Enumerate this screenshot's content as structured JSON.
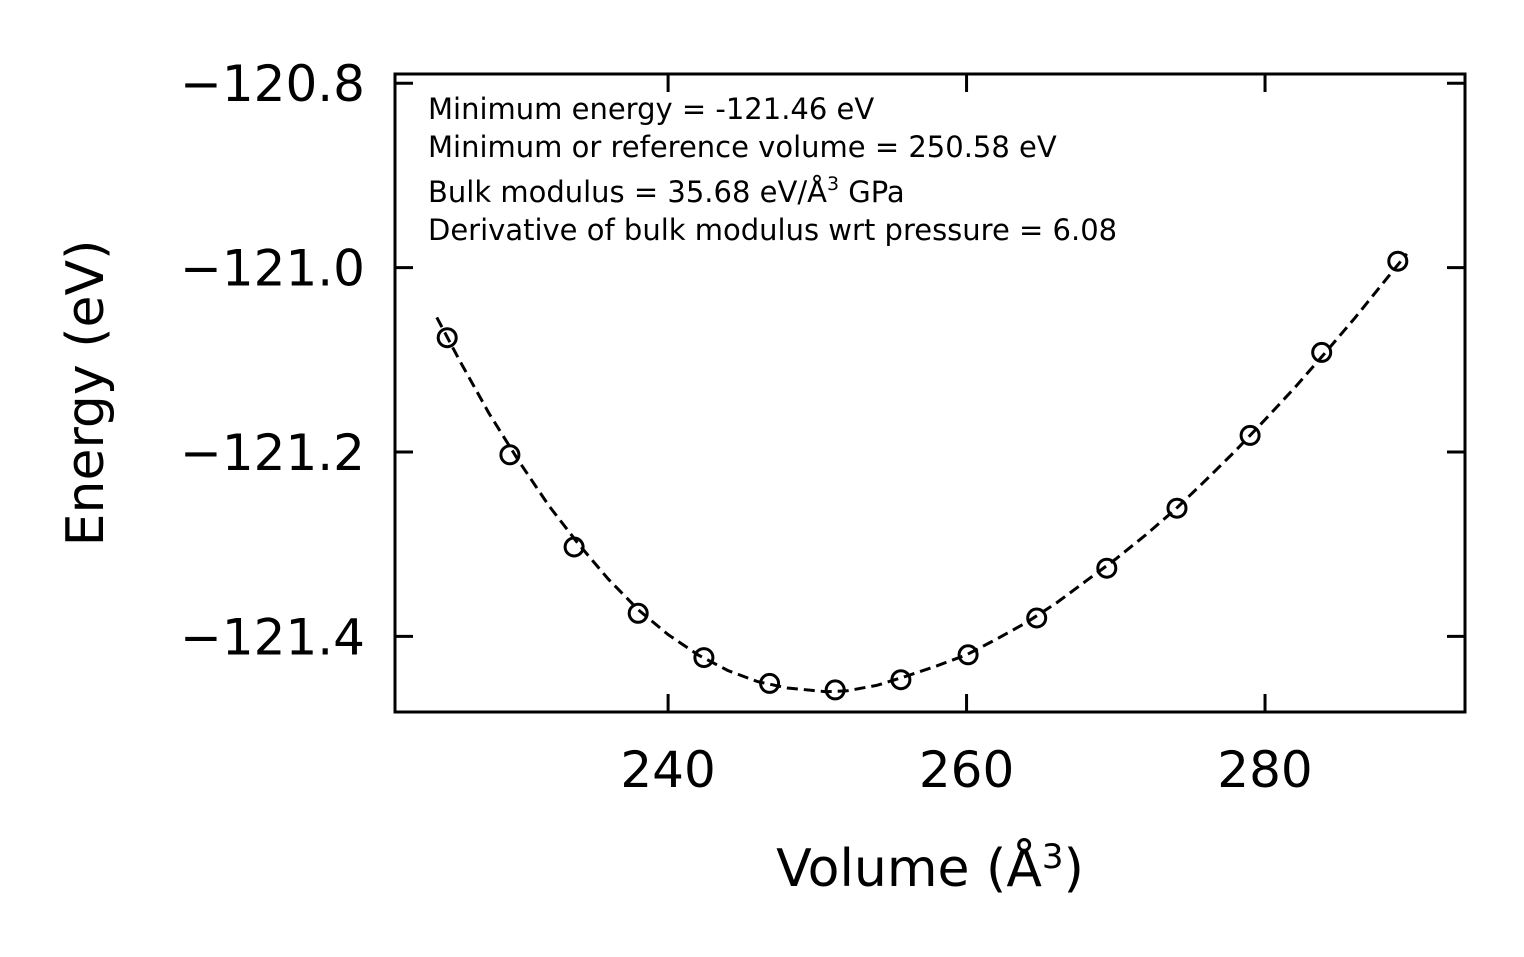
{
  "chart_data": {
    "type": "scatter",
    "title": "",
    "xlabel": "Volume (Å",
    "xlabel_sup": "3",
    "xlabel_end": ")",
    "ylabel": "Energy (eV)",
    "xlim": [
      221.7,
      293.4
    ],
    "ylim": [
      -121.482,
      -120.79
    ],
    "xticks": [
      240,
      260,
      280
    ],
    "xtick_labels": [
      "240",
      "260",
      "280"
    ],
    "yticks": [
      -120.8,
      -121.0,
      -121.2,
      -121.4
    ],
    "ytick_labels": [
      "−120.8",
      "−121.0",
      "−121.2",
      "−121.4"
    ],
    "series": [
      {
        "name": "data points",
        "marker": "open-circle",
        "x": [
          225.2,
          229.4,
          233.7,
          238.0,
          242.4,
          246.8,
          251.2,
          255.6,
          260.1,
          264.7,
          269.4,
          274.1,
          279.0,
          283.8,
          288.9
        ],
        "y": [
          -121.076,
          -121.203,
          -121.303,
          -121.375,
          -121.423,
          -121.451,
          -121.458,
          -121.447,
          -121.42,
          -121.38,
          -121.326,
          -121.261,
          -121.182,
          -121.092,
          -120.993
        ]
      },
      {
        "name": "fit",
        "style": "dashed",
        "x": [
          224.5,
          226.0,
          228.0,
          230.0,
          232.0,
          234.0,
          236.0,
          238.0,
          240.0,
          242.0,
          244.0,
          246.0,
          248.0,
          250.58,
          252.0,
          254.0,
          256.0,
          258.0,
          260.0,
          262.0,
          264.0,
          266.0,
          268.0,
          270.0,
          272.0,
          274.0,
          276.0,
          278.0,
          280.0,
          282.0,
          284.0,
          286.0,
          288.0,
          289.5
        ],
        "y": [
          -121.054,
          -121.1,
          -121.158,
          -121.21,
          -121.258,
          -121.3,
          -121.338,
          -121.371,
          -121.398,
          -121.42,
          -121.437,
          -121.449,
          -121.456,
          -121.46,
          -121.459,
          -121.453,
          -121.443,
          -121.432,
          -121.42,
          -121.403,
          -121.385,
          -121.364,
          -121.34,
          -121.316,
          -121.29,
          -121.262,
          -121.231,
          -121.199,
          -121.165,
          -121.13,
          -121.093,
          -121.055,
          -121.015,
          -120.985
        ]
      }
    ],
    "annotations": [
      "Minimum energy = -121.46 eV",
      "Minimum or reference volume = 250.58 eV",
      "Bulk modulus = 35.68 eV/Å",
      "Derivative of bulk modulus wrt pressure = 6.08"
    ],
    "annotation_sup": "3",
    "annotation_tail": " GPa",
    "legend": "none",
    "grid": false
  }
}
